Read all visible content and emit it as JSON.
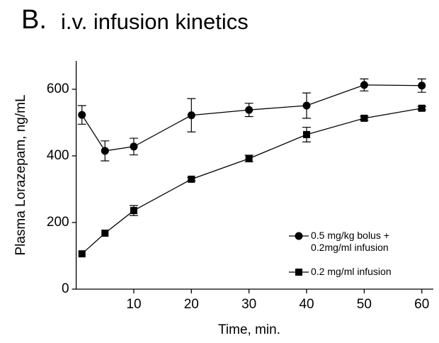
{
  "chart_data": {
    "type": "line",
    "panel_label": "B.",
    "title": "i.v. infusion kinetics",
    "x_label": "Time, min.",
    "y_label": "Plasma Lorazepam, ng/mL",
    "xlim": [
      0,
      62
    ],
    "xticks": [
      10,
      20,
      30,
      40,
      50,
      60
    ],
    "ylim": [
      0,
      685
    ],
    "yticks": [
      0,
      200,
      400,
      600
    ],
    "legend": "lower right",
    "series": [
      {
        "name": "0.5 mg/kg bolus +\n0.2mg/ml infusion",
        "color": "#000000",
        "marker": "circle",
        "x": [
          1,
          5,
          10,
          20,
          30,
          40,
          50,
          60
        ],
        "values": [
          523,
          415,
          428,
          522,
          538,
          551,
          613,
          611
        ],
        "errors": [
          28,
          30,
          25,
          50,
          20,
          38,
          18,
          20
        ]
      },
      {
        "name": "0.2 mg/ml infusion",
        "color": "#000000",
        "marker": "square",
        "x": [
          1,
          5,
          10,
          20,
          30,
          40,
          50,
          60
        ],
        "values": [
          106,
          168,
          236,
          330,
          392,
          464,
          513,
          543
        ],
        "errors": [
          null,
          null,
          15,
          5,
          10,
          22,
          6,
          5
        ]
      }
    ]
  }
}
